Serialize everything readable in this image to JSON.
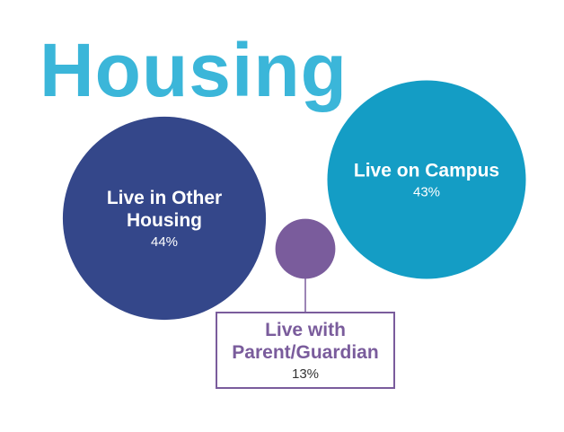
{
  "chart_data": {
    "type": "bubble",
    "title": "Housing",
    "categories": [
      "Live in Other Housing",
      "Live on Campus",
      "Live with Parent/Guardian"
    ],
    "values": [
      44,
      43,
      13
    ],
    "value_labels": [
      "44%",
      "43%",
      "13%"
    ],
    "colors": [
      "#34478a",
      "#149dc5",
      "#7a5c9c"
    ],
    "title_color": "#3bb6d9"
  }
}
